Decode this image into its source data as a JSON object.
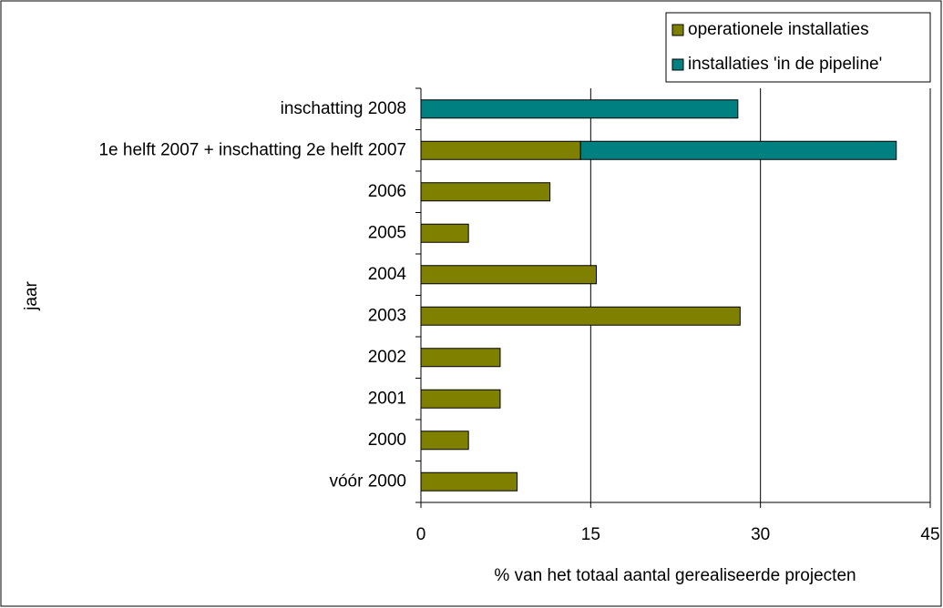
{
  "chart_data": {
    "type": "bar",
    "orientation": "horizontal",
    "stacked": true,
    "xlabel": "% van het totaal aantal gerealiseerde projecten",
    "ylabel": "jaar",
    "categories": [
      "inschatting 2008",
      "1e helft 2007 + inschatting 2e helft 2007",
      "2006",
      "2005",
      "2004",
      "2003",
      "2002",
      "2001",
      "2000",
      "vóór 2000"
    ],
    "series": [
      {
        "name": "operationele installaties",
        "color": "#808000",
        "values": [
          0,
          14.1,
          11.4,
          4.2,
          15.5,
          28.2,
          7.0,
          7.0,
          4.2,
          8.5
        ]
      },
      {
        "name": "installaties 'in de pipeline'",
        "color": "#008080",
        "values": [
          28.0,
          27.9,
          0,
          0,
          0,
          0,
          0,
          0,
          0,
          0
        ]
      }
    ],
    "xlim": [
      0,
      45
    ],
    "xticks": [
      0,
      15,
      30,
      45
    ],
    "grid": true,
    "legend": "top-right"
  }
}
